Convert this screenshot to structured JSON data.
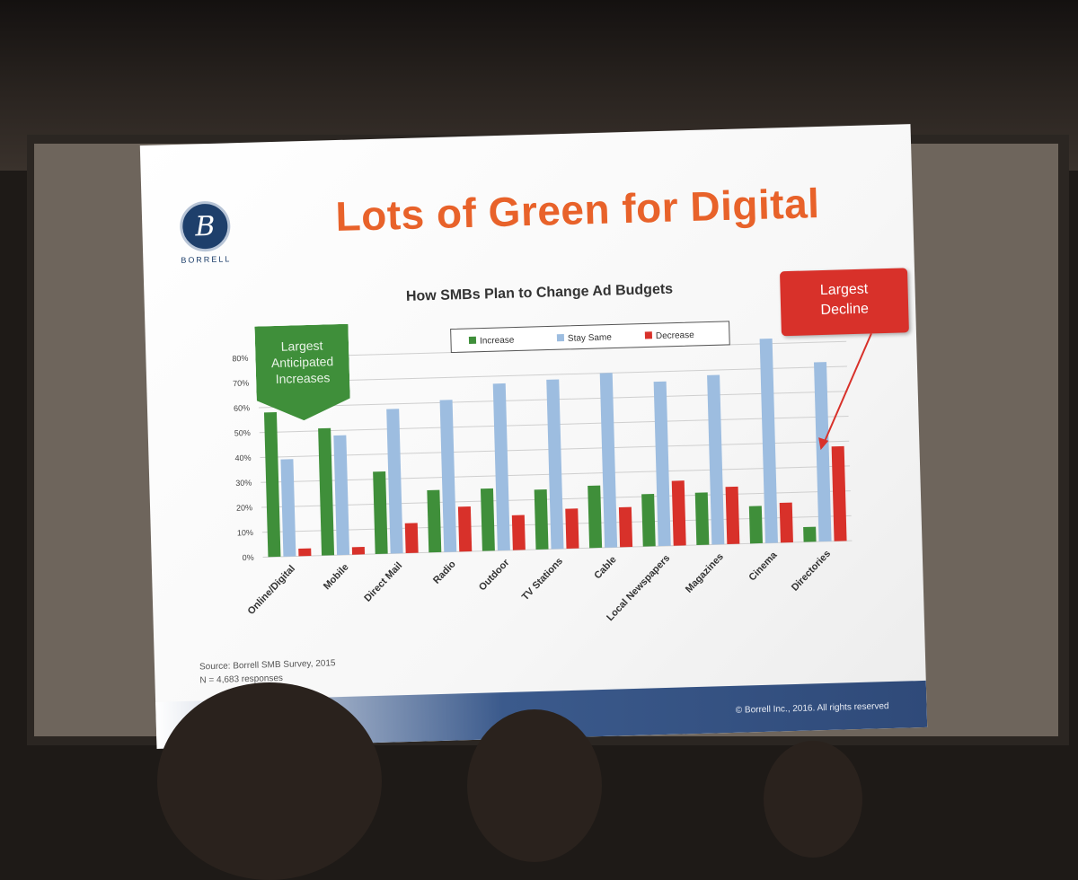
{
  "slide": {
    "title": "Lots of Green for Digital",
    "logo_text": "BORRELL",
    "logo_glyph": "B",
    "callout_green": [
      "Largest",
      "Anticipated",
      "Increases"
    ],
    "callout_red": [
      "Largest",
      "Decline"
    ],
    "source_lines": [
      "Source:  Borrell SMB Survey, 2015",
      "N = 4,683 responses"
    ],
    "copyright": "© Borrell Inc., 2016. All rights reserved"
  },
  "colors": {
    "increase": "#3f8f3a",
    "stay_same": "#9dbde0",
    "decrease": "#d8312a",
    "title": "#e8622a"
  },
  "chart_data": {
    "type": "bar",
    "title": "How SMBs Plan to Change Ad Budgets",
    "categories": [
      "Online/Digital",
      "Mobile",
      "Direct Mail",
      "Radio",
      "Outdoor",
      "TV Stations",
      "Cable",
      "Local Newspapers",
      "Magazines",
      "Cinema",
      "Directories"
    ],
    "series": [
      {
        "name": "Increase",
        "values": [
          58,
          51,
          33,
          25,
          25,
          24,
          25,
          21,
          21,
          15,
          6
        ]
      },
      {
        "name": "Stay Same",
        "values": [
          39,
          48,
          58,
          61,
          67,
          68,
          70,
          66,
          68,
          82,
          72
        ]
      },
      {
        "name": "Decrease",
        "values": [
          3,
          3,
          12,
          18,
          14,
          16,
          16,
          26,
          23,
          16,
          38
        ]
      }
    ],
    "yticks": [
      "0%",
      "10%",
      "20%",
      "30%",
      "40%",
      "50%",
      "60%",
      "70%",
      "80%"
    ],
    "ylim": [
      0,
      80
    ],
    "grid": true,
    "legend_position": "top"
  }
}
